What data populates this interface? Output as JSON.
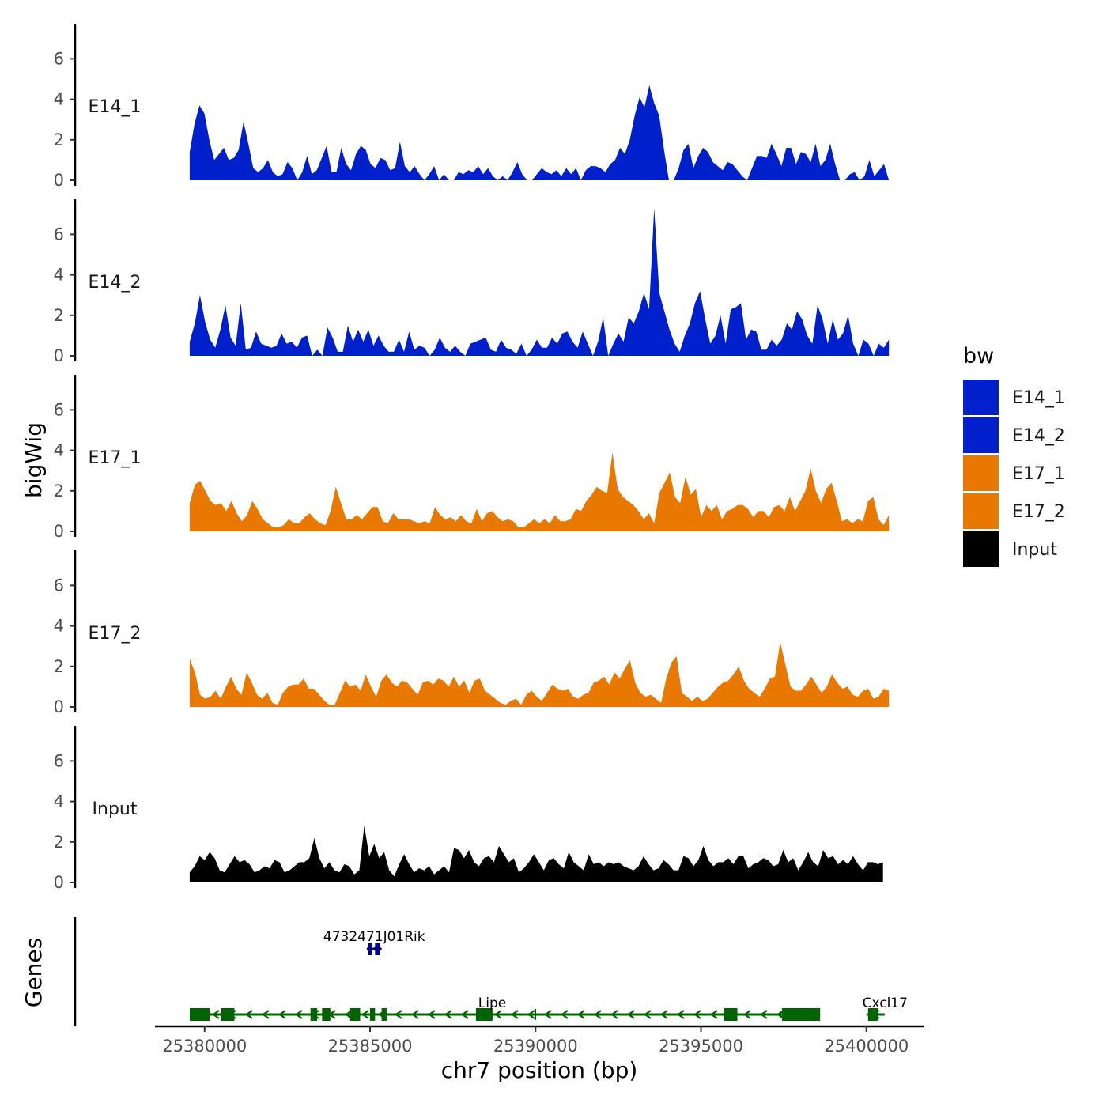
{
  "chart_data": {
    "type": "area",
    "ylabel": "bigWig",
    "xlabel": "chr7 position (bp)",
    "x_ticks": [
      25380000,
      25385000,
      25390000,
      25395000,
      25400000
    ],
    "x_tick_labels": [
      "25380000",
      "25385000",
      "25390000",
      "25395000",
      "25400000"
    ],
    "xlim": [
      25378500,
      25401750
    ],
    "ylim": [
      0,
      7.6
    ],
    "y_ticks": [
      0,
      2,
      4,
      6
    ],
    "y_tick_labels": [
      "0",
      "2",
      "4",
      "6"
    ],
    "legend": {
      "title": "bw",
      "position": "right",
      "entries": [
        {
          "label": "E14_1",
          "color": "#0020cc"
        },
        {
          "label": "E14_2",
          "color": "#0020cc"
        },
        {
          "label": "E17_1",
          "color": "#e87800"
        },
        {
          "label": "E17_2",
          "color": "#e87800"
        },
        {
          "label": "Input",
          "color": "#000000"
        }
      ]
    },
    "tracks": [
      {
        "name": "E14_1",
        "color": "#0020cc",
        "x_start": 25379550,
        "x_end": 25400680,
        "y": [
          1.4,
          2.8,
          3.7,
          3.3,
          2.0,
          1.0,
          1.3,
          1.6,
          1.0,
          1.1,
          1.5,
          2.9,
          1.8,
          0.6,
          0.4,
          0.6,
          1.0,
          0.4,
          0.2,
          0.3,
          0.9,
          0.6,
          0.0,
          0.4,
          1.2,
          0.3,
          0.5,
          1.1,
          1.7,
          0.4,
          0.4,
          1.6,
          0.8,
          0.5,
          1.3,
          1.7,
          1.5,
          0.8,
          0.6,
          1.1,
          1.0,
          0.5,
          0.6,
          1.9,
          0.7,
          0.4,
          0.7,
          0.3,
          0.0,
          0.3,
          0.7,
          0.0,
          0.3,
          0.0,
          0.0,
          0.4,
          0.3,
          0.5,
          0.4,
          0.7,
          0.3,
          0.6,
          0.2,
          0.0,
          0.2,
          0.0,
          0.4,
          0.9,
          0.3,
          0.0,
          0.0,
          0.3,
          0.6,
          0.4,
          0.3,
          0.5,
          0.2,
          0.6,
          0.3,
          0.6,
          0.0,
          0.5,
          0.7,
          0.7,
          0.6,
          0.4,
          0.8,
          1.0,
          1.6,
          1.3,
          2.0,
          3.2,
          4.1,
          3.6,
          4.7,
          3.8,
          3.2,
          1.5,
          0.0,
          0.0,
          0.6,
          1.5,
          1.8,
          0.6,
          1.2,
          1.6,
          1.4,
          0.9,
          0.7,
          0.5,
          0.9,
          0.8,
          0.5,
          0.2,
          0.0,
          0.6,
          1.2,
          1.2,
          1.1,
          1.8,
          1.3,
          0.7,
          1.6,
          1.6,
          0.8,
          1.4,
          1.3,
          0.9,
          1.8,
          0.7,
          1.0,
          1.8,
          0.8,
          0.0,
          0.0,
          0.3,
          0.4,
          0.0,
          0.2,
          1.0,
          0.2,
          0.5,
          0.8,
          0.0
        ]
      },
      {
        "name": "E14_2",
        "color": "#0020cc",
        "x_start": 25379550,
        "x_end": 25400680,
        "y": [
          0.7,
          1.6,
          3.0,
          1.7,
          0.8,
          0.4,
          1.3,
          2.5,
          0.9,
          0.5,
          2.6,
          0.3,
          0.4,
          1.2,
          0.6,
          0.5,
          0.4,
          0.5,
          1.1,
          0.6,
          0.7,
          0.4,
          0.9,
          1.0,
          0.0,
          0.3,
          0.0,
          1.4,
          0.9,
          0.2,
          0.2,
          1.5,
          0.7,
          1.3,
          0.7,
          1.3,
          0.5,
          1.0,
          0.5,
          0.2,
          0.2,
          0.8,
          0.2,
          1.2,
          0.3,
          0.5,
          0.4,
          0.0,
          0.3,
          0.9,
          0.4,
          0.2,
          0.5,
          0.2,
          0.0,
          0.6,
          0.7,
          0.8,
          0.9,
          0.3,
          0.2,
          0.8,
          0.4,
          0.3,
          0.1,
          0.6,
          0.0,
          0.3,
          0.8,
          0.4,
          0.4,
          0.9,
          0.6,
          1.1,
          1.2,
          0.7,
          0.4,
          1.2,
          0.6,
          0.0,
          0.7,
          1.9,
          0.0,
          0.6,
          1.1,
          0.7,
          1.9,
          1.6,
          2.2,
          3.1,
          2.3,
          7.3,
          3.1,
          2.2,
          1.3,
          0.6,
          0.2,
          1.0,
          1.6,
          2.6,
          3.2,
          1.8,
          0.6,
          1.0,
          2.0,
          0.6,
          2.3,
          2.4,
          2.6,
          0.8,
          1.3,
          1.2,
          0.3,
          0.3,
          0.8,
          0.5,
          0.8,
          1.6,
          1.3,
          2.2,
          1.8,
          1.0,
          0.6,
          2.5,
          1.8,
          0.6,
          1.8,
          0.8,
          1.1,
          2.0,
          0.6,
          0.0,
          0.8,
          0.6,
          0.0,
          0.6,
          0.4,
          0.8
        ]
      },
      {
        "name": "E17_1",
        "color": "#e87800",
        "x_start": 25379550,
        "x_end": 25400680,
        "y": [
          1.4,
          2.3,
          2.5,
          2.0,
          1.5,
          1.3,
          1.4,
          1.0,
          1.5,
          0.9,
          0.5,
          0.8,
          1.5,
          1.1,
          0.6,
          0.4,
          0.2,
          0.2,
          0.3,
          0.6,
          0.4,
          0.4,
          0.7,
          0.9,
          0.6,
          0.4,
          0.3,
          1.0,
          2.2,
          1.4,
          0.6,
          0.6,
          0.8,
          0.6,
          0.9,
          1.2,
          1.2,
          0.5,
          0.4,
          0.9,
          0.6,
          0.6,
          0.6,
          0.5,
          0.4,
          0.5,
          0.4,
          1.2,
          0.8,
          0.6,
          0.7,
          0.5,
          0.8,
          0.5,
          0.4,
          1.1,
          0.5,
          0.9,
          1.0,
          0.7,
          0.5,
          0.6,
          0.5,
          0.2,
          0.2,
          0.4,
          0.6,
          0.4,
          0.6,
          0.4,
          0.8,
          0.5,
          0.5,
          0.6,
          1.1,
          1.0,
          1.5,
          1.8,
          2.2,
          2.0,
          1.9,
          3.9,
          2.1,
          1.7,
          1.5,
          1.3,
          1.0,
          0.6,
          0.9,
          0.4,
          1.9,
          2.4,
          2.9,
          1.7,
          1.4,
          2.7,
          1.8,
          2.1,
          0.7,
          1.3,
          1.0,
          1.3,
          0.6,
          1.0,
          1.1,
          1.3,
          1.3,
          1.1,
          0.7,
          1.0,
          1.0,
          0.7,
          1.2,
          1.3,
          1.0,
          1.7,
          1.0,
          1.5,
          2.0,
          3.1,
          2.0,
          1.4,
          2.1,
          2.4,
          1.5,
          0.5,
          0.6,
          0.4,
          0.6,
          0.5,
          1.5,
          1.7,
          0.6,
          0.3,
          0.8
        ]
      },
      {
        "name": "E17_2",
        "color": "#e87800",
        "x_start": 25379550,
        "x_end": 25400680,
        "y": [
          2.4,
          1.7,
          0.6,
          0.4,
          0.5,
          0.8,
          0.4,
          1.0,
          1.5,
          0.9,
          0.6,
          1.7,
          1.2,
          0.6,
          0.4,
          0.7,
          0.2,
          0.1,
          0.7,
          1.0,
          1.1,
          1.1,
          1.4,
          0.9,
          0.9,
          0.6,
          0.3,
          0.1,
          0.1,
          0.7,
          1.3,
          1.0,
          1.1,
          0.8,
          1.6,
          1.0,
          0.5,
          1.3,
          1.6,
          1.2,
          1.0,
          1.3,
          1.2,
          0.9,
          0.6,
          1.2,
          1.3,
          1.1,
          1.4,
          1.3,
          1.0,
          1.5,
          1.0,
          1.3,
          0.7,
          1.3,
          1.4,
          0.8,
          0.6,
          0.4,
          0.2,
          0.1,
          0.3,
          0.4,
          0.1,
          0.6,
          0.8,
          0.5,
          0.3,
          0.7,
          1.1,
          0.9,
          0.8,
          0.9,
          0.5,
          0.4,
          0.6,
          0.7,
          1.2,
          1.3,
          1.5,
          1.1,
          1.7,
          1.4,
          1.9,
          2.3,
          1.2,
          0.7,
          0.5,
          0.6,
          0.4,
          0.2,
          1.4,
          2.2,
          2.5,
          0.7,
          0.5,
          0.3,
          0.5,
          0.3,
          0.4,
          0.7,
          1.0,
          1.2,
          1.3,
          1.6,
          2.0,
          1.3,
          0.9,
          0.7,
          0.5,
          0.9,
          1.4,
          1.5,
          3.2,
          2.1,
          1.0,
          0.8,
          0.8,
          1.1,
          1.5,
          1.1,
          0.7,
          1.0,
          1.6,
          1.2,
          0.9,
          1.0,
          0.6,
          0.5,
          0.8,
          0.9,
          0.4,
          0.5,
          0.9,
          0.8
        ]
      },
      {
        "name": "Input",
        "color": "#000000",
        "x_start": 25379550,
        "x_end": 25400500,
        "y": [
          0.5,
          0.8,
          1.3,
          1.1,
          1.5,
          1.2,
          0.6,
          0.5,
          0.9,
          1.3,
          1.0,
          1.1,
          0.9,
          0.5,
          0.6,
          0.8,
          0.7,
          1.1,
          1.0,
          0.5,
          0.6,
          0.8,
          1.0,
          1.0,
          1.2,
          2.2,
          1.2,
          0.7,
          1.0,
          0.6,
          0.5,
          0.9,
          0.8,
          0.4,
          0.6,
          2.8,
          1.3,
          1.9,
          1.2,
          1.5,
          0.6,
          0.3,
          0.9,
          1.4,
          0.9,
          0.5,
          0.7,
          0.6,
          0.8,
          0.4,
          0.6,
          0.8,
          0.5,
          1.7,
          1.6,
          1.2,
          1.6,
          1.0,
          0.8,
          1.2,
          1.3,
          1.0,
          1.8,
          1.4,
          1.0,
          1.2,
          0.5,
          0.7,
          1.0,
          1.4,
          1.0,
          0.6,
          1.1,
          1.2,
          0.9,
          0.7,
          1.5,
          1.0,
          0.8,
          0.6,
          1.4,
          0.9,
          1.0,
          0.8,
          1.0,
          0.9,
          1.0,
          0.8,
          0.7,
          0.6,
          0.8,
          1.3,
          0.9,
          0.6,
          0.7,
          1.1,
          0.9,
          0.6,
          0.6,
          1.3,
          1.2,
          0.8,
          1.1,
          1.8,
          1.1,
          0.8,
          1.0,
          1.0,
          1.2,
          0.9,
          1.3,
          1.3,
          0.7,
          0.9,
          1.0,
          1.2,
          1.1,
          0.8,
          0.9,
          1.6,
          1.0,
          1.2,
          0.6,
          1.0,
          1.5,
          1.0,
          0.8,
          1.6,
          1.2,
          1.3,
          0.9,
          1.1,
          0.9,
          1.3,
          0.9,
          0.6,
          1.0,
          1.0,
          0.9,
          1.0
        ]
      }
    ],
    "genes_track_label": "Genes",
    "genes": [
      {
        "name": "4732471J01Rik",
        "strand": "-",
        "color": "#000080",
        "start": 25384900,
        "end": 25385350,
        "row": 1,
        "exons": [
          [
            25384950,
            25385050
          ],
          [
            25385150,
            25385300
          ]
        ]
      },
      {
        "name": "Lipe",
        "strand": "-",
        "color": "#006400",
        "start": 25379550,
        "end": 25398600,
        "row": 2,
        "exons": [
          [
            25379550,
            25380150
          ],
          [
            25380500,
            25380900
          ],
          [
            25383200,
            25383400
          ],
          [
            25383550,
            25383800
          ],
          [
            25384400,
            25384700
          ],
          [
            25385000,
            25385150
          ],
          [
            25385350,
            25385500
          ],
          [
            25388200,
            25388700
          ],
          [
            25395700,
            25396100
          ],
          [
            25397450,
            25398600
          ]
        ]
      },
      {
        "name": "Cxcl17",
        "strand": "-",
        "color": "#006400",
        "start": 25400000,
        "end": 25400550,
        "row": 2,
        "exons": [
          [
            25400050,
            25400350
          ]
        ]
      }
    ]
  }
}
